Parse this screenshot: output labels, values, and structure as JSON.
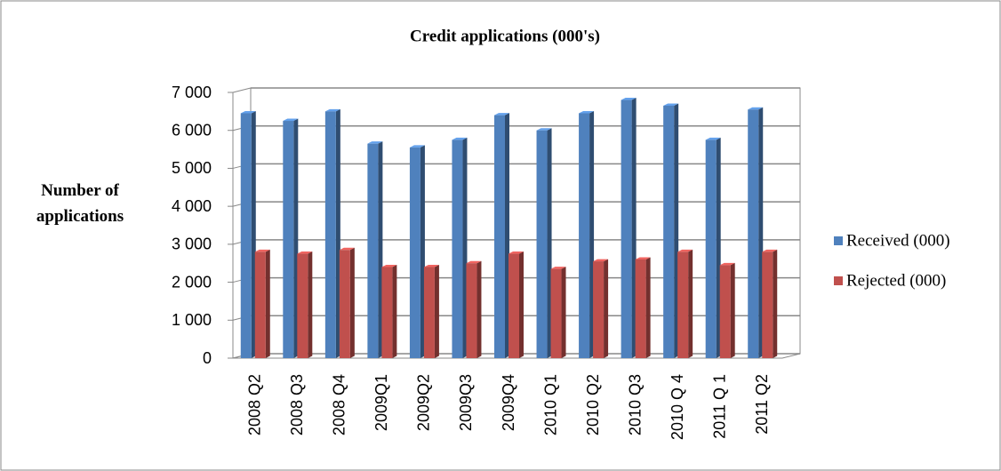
{
  "chart_data": {
    "type": "bar",
    "title": "Credit applications (000's)",
    "y_label": "Number of applications",
    "categories": [
      "2008 Q2",
      "2008 Q3",
      "2008 Q4",
      "2009Q1",
      "2009Q2",
      "2009Q3",
      "2009Q4",
      "2010 Q1",
      "2010 Q2",
      "2010 Q3",
      "2010 Q 4",
      "2011 Q 1",
      "2011 Q2"
    ],
    "series": [
      {
        "name": "Received (000)",
        "color": "#4f81bd",
        "values": [
          6450,
          6250,
          6500,
          5650,
          5550,
          5750,
          6400,
          6000,
          6450,
          6800,
          6650,
          5750,
          6550
        ]
      },
      {
        "name": "Rejected (000)",
        "color": "#c0504d",
        "values": [
          2800,
          2750,
          2850,
          2400,
          2400,
          2500,
          2750,
          2350,
          2550,
          2600,
          2800,
          2450,
          2800
        ]
      }
    ],
    "ylim": [
      0,
      7000
    ],
    "yticks": [
      0,
      {
        "value": 1000,
        "label": "1 000"
      },
      {
        "value": 2000,
        "label": "2 000"
      },
      {
        "value": 3000,
        "label": "3 000"
      },
      {
        "value": 4000,
        "label": "4 000"
      },
      {
        "value": 5000,
        "label": "5 000"
      },
      {
        "value": 6000,
        "label": "6 000"
      },
      {
        "value": 7000,
        "label": "7 000"
      }
    ],
    "grid": true,
    "legend": "right"
  }
}
